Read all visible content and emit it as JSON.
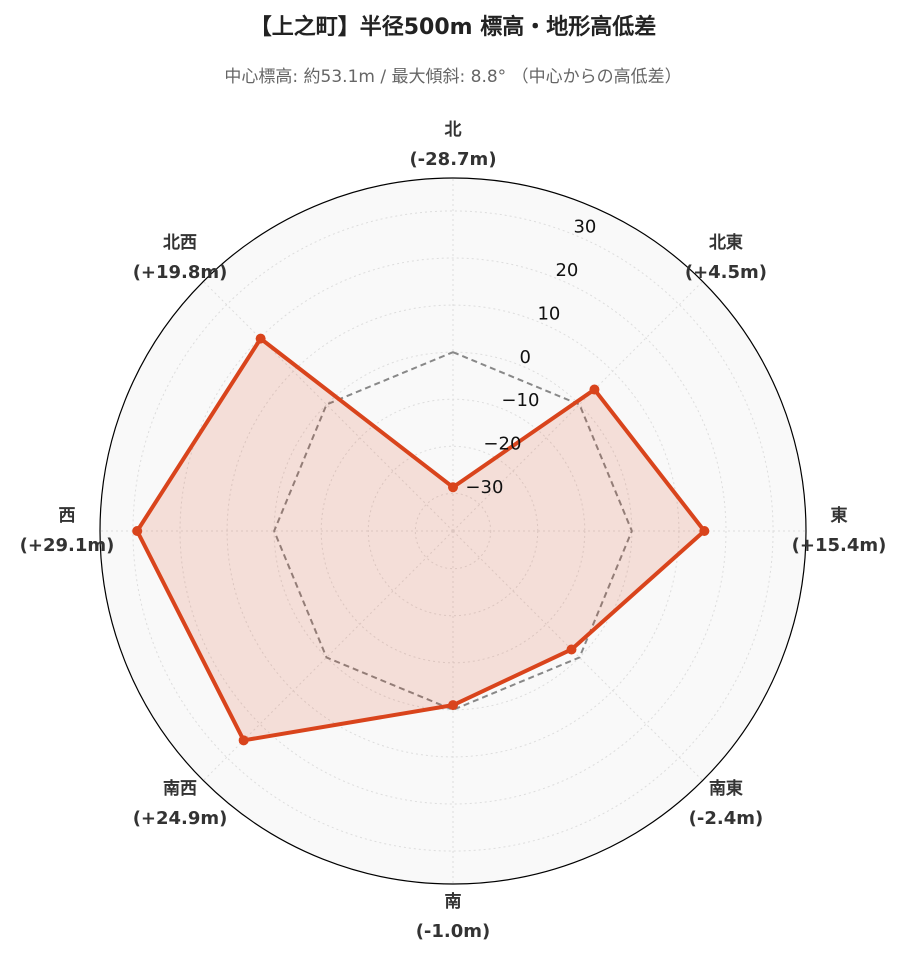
{
  "chart_data": {
    "type": "radar",
    "title": "【上之町】半径500m 標高・地形高低差",
    "subtitle": "中心標高: 約53.1m / 最大傾斜: 8.8° （中心からの高低差）",
    "categories": [
      "北",
      "北東",
      "東",
      "南東",
      "南",
      "南西",
      "西",
      "北西"
    ],
    "series": [
      {
        "color": "#d9441c",
        "values": [
          -28.7,
          4.5,
          15.4,
          -2.4,
          -1.0,
          24.9,
          29.1,
          19.8
        ],
        "value_labels": [
          "(-28.7m)",
          "(+4.5m)",
          "(+15.4m)",
          "(-2.4m)",
          "(-1.0m)",
          "(+24.9m)",
          "(+29.1m)",
          "(+19.8m)"
        ]
      }
    ],
    "reference_value": 0,
    "ylim": [
      -38,
      37
    ],
    "yticks": [
      {
        "value": -30,
        "label": "−30"
      },
      {
        "value": -20,
        "label": "−20"
      },
      {
        "value": -10,
        "label": "−10"
      },
      0,
      10,
      20,
      30
    ],
    "grid": true
  }
}
